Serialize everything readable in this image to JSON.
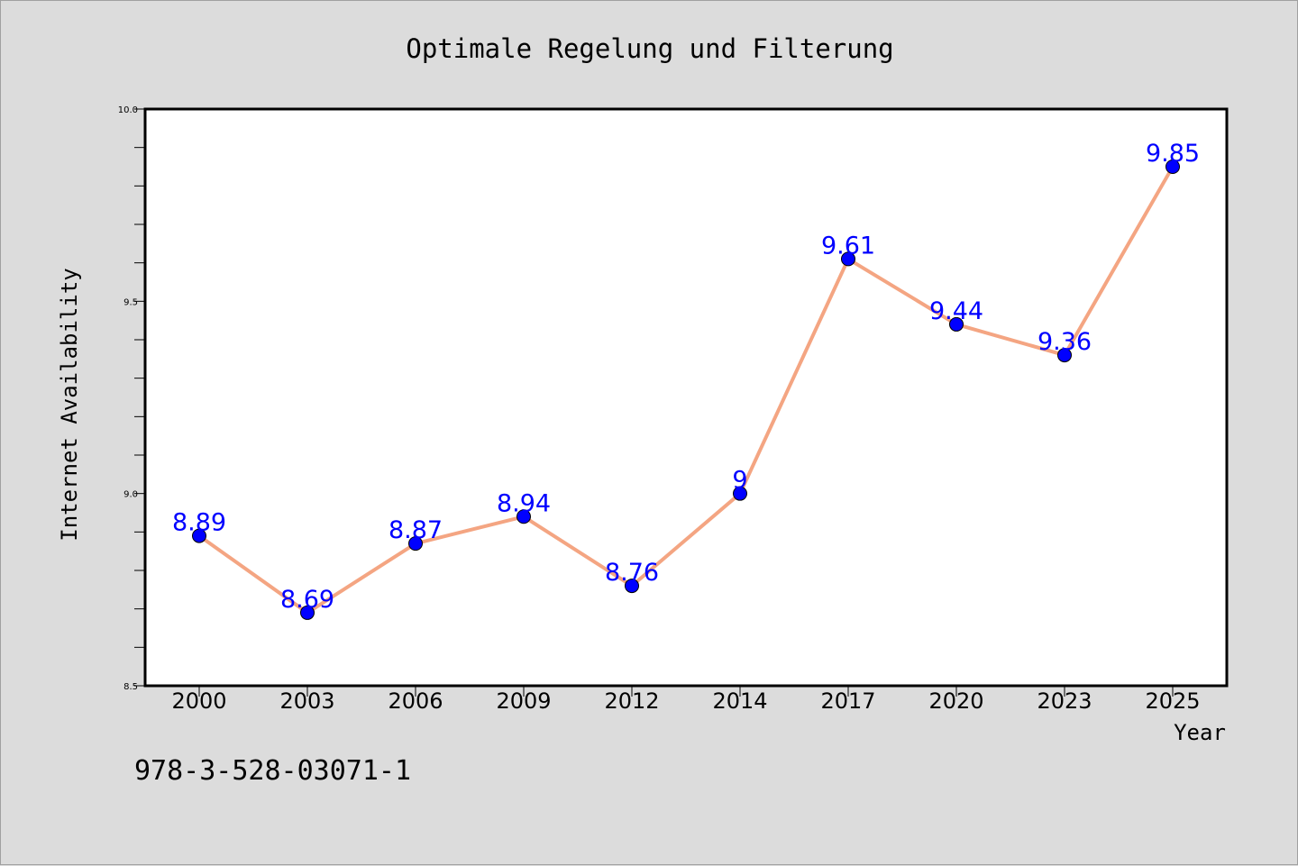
{
  "chart_data": {
    "type": "line",
    "title": "Optimale Regelung und Filterung",
    "xlabel": "Year",
    "ylabel": "Internet Availability",
    "categories": [
      "2000",
      "2003",
      "2006",
      "2009",
      "2012",
      "2014",
      "2017",
      "2020",
      "2023",
      "2025"
    ],
    "series": [
      {
        "values": [
          8.89,
          8.69,
          8.87,
          8.94,
          8.76,
          9,
          9.61,
          9.44,
          9.36,
          9.85
        ],
        "labels": [
          "8.89",
          "8.69",
          "8.87",
          "8.94",
          "8.76",
          "9",
          "9.61",
          "9.44",
          "9.36",
          "9.85"
        ],
        "line_color": "#f4a582",
        "marker_color": "#0000ff",
        "label_color": "#0000ff"
      }
    ],
    "ylim": [
      8.5,
      10.0
    ],
    "yticks": [
      "8.5",
      "9.0",
      "9.5",
      "10.0"
    ],
    "grid": false,
    "background": "#dcdcdc",
    "plot_background": "#ffffff"
  },
  "footer": {
    "isbn": "978-3-528-03071-1"
  }
}
